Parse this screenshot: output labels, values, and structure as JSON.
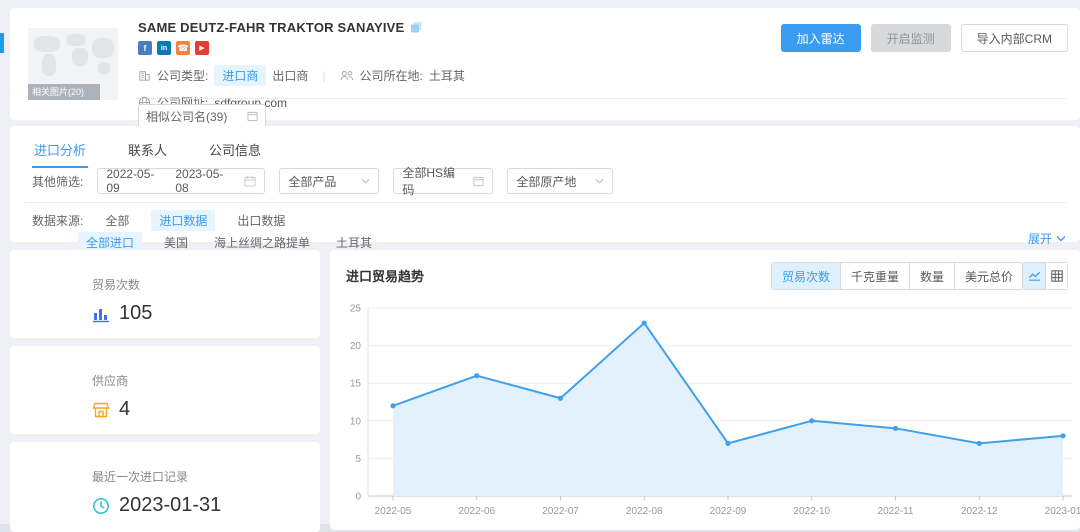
{
  "colors": {
    "accent": "#3a9cf0",
    "tag_bg": "#e6f4fe",
    "chart_line": "#41a0ee",
    "chart_fill": "#e3f1fd"
  },
  "icon_glyphs": {
    "facebook": "f",
    "linkedin": "in",
    "phone": "☎",
    "youtube": "▶"
  },
  "header": {
    "company_name": "SAME DEUTZ-FAHR TRAKTOR SANAYIVE",
    "related_images_label": "相关图片(20)",
    "company_type": {
      "label": "公司类型:",
      "importer": "进口商",
      "exporter": "出口商"
    },
    "location": {
      "label": "公司所在地:",
      "value": "土耳其"
    },
    "website": {
      "label": "公司网址:",
      "value": "sdfgroup.com"
    },
    "similar_companies_label": "相似公司名(39)",
    "actions": {
      "add_radar": "加入雷达",
      "start_monitor": "开启监测",
      "import_crm": "导入内部CRM"
    }
  },
  "tabs": {
    "items": [
      {
        "label": "进口分析",
        "active": true
      },
      {
        "label": "联系人",
        "active": false
      },
      {
        "label": "公司信息",
        "active": false
      }
    ]
  },
  "filters": {
    "label": "其他筛选:",
    "date_start": "2022-05-09",
    "date_end": "2023-05-08",
    "product": "全部产品",
    "hs_code": "全部HS编码",
    "origin": "全部原产地"
  },
  "data_source": {
    "label": "数据来源:",
    "options": [
      {
        "label": "全部",
        "active": false
      },
      {
        "label": "进口数据",
        "active": true
      },
      {
        "label": "出口数据",
        "active": false
      }
    ],
    "sub_options": [
      {
        "label": "全部进口",
        "active": true
      },
      {
        "label": "美国",
        "active": false
      },
      {
        "label": "海上丝绸之路提单",
        "active": false
      },
      {
        "label": "土耳其",
        "active": false
      }
    ],
    "expand_label": "展开"
  },
  "stats": [
    {
      "label": "贸易次数",
      "value": "105",
      "icon": "bar-chart-icon",
      "color": "#3e6ff0"
    },
    {
      "label": "供应商",
      "value": "4",
      "icon": "shop-icon",
      "color": "#f5a623"
    },
    {
      "label": "最近一次进口记录",
      "value": "2023-01-31",
      "icon": "clock-icon",
      "color": "#2bc0d4"
    }
  ],
  "chart_panel": {
    "title": "进口贸易趋势",
    "metric_toggles": [
      {
        "label": "贸易次数",
        "active": true
      },
      {
        "label": "千克重量",
        "active": false
      },
      {
        "label": "数量",
        "active": false
      },
      {
        "label": "美元总价",
        "active": false
      }
    ],
    "view_toggles": [
      "line-chart-icon",
      "table-icon"
    ]
  },
  "chart_data": {
    "type": "area",
    "title": "进口贸易趋势",
    "x": [
      "2022-05",
      "2022-06",
      "2022-07",
      "2022-08",
      "2022-09",
      "2022-10",
      "2022-11",
      "2022-12",
      "2023-01"
    ],
    "series": [
      {
        "name": "贸易次数",
        "values": [
          12,
          16,
          13,
          23,
          7,
          10,
          9,
          7,
          8
        ]
      }
    ],
    "xlabel": "",
    "ylabel": "",
    "ylim": [
      0,
      25
    ],
    "yticks": [
      0,
      5,
      10,
      15,
      20,
      25
    ],
    "grid": true,
    "legend": "none",
    "line_color": "#41a0ee",
    "fill_color": "#e3f1fd"
  }
}
